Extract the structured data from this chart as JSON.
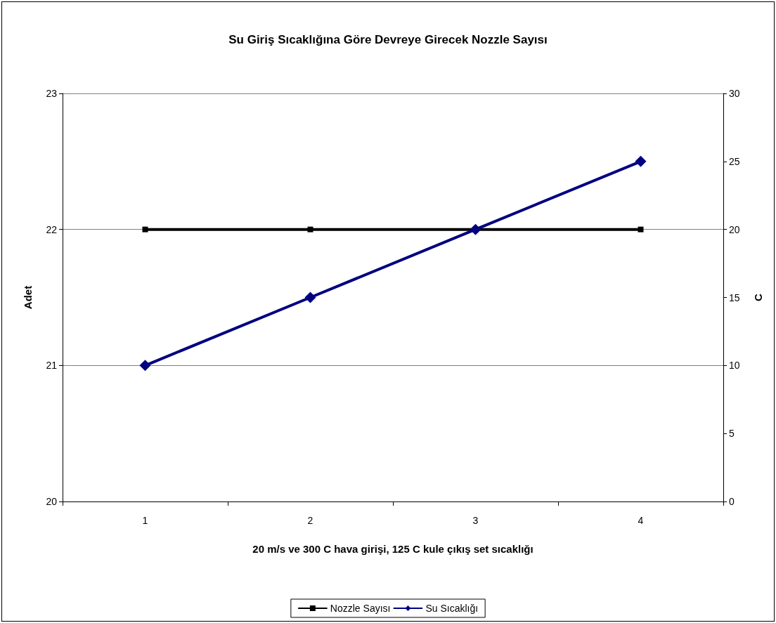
{
  "chart_data": {
    "type": "line",
    "title": "Su Giriş Sıcaklığına Göre Devreye Girecek Nozzle Sayısı",
    "xlabel": "20 m/s ve 300 C hava girişi, 125 C kule çıkış set sıcaklığı",
    "ylabel": "Adet",
    "y2label": "C",
    "categories": [
      "1",
      "2",
      "3",
      "4"
    ],
    "series": [
      {
        "name": "Nozzle Sayısı",
        "color": "#000000",
        "values": [
          22,
          22,
          22,
          22
        ],
        "marker": "square"
      },
      {
        "name": "Su Sıcaklığı",
        "color": "#000080",
        "values": [
          10,
          15,
          20,
          25
        ],
        "marker": "diamond",
        "axis": "y2"
      }
    ],
    "ylim": [
      20,
      23
    ],
    "yticks": [
      20,
      21,
      22,
      23
    ],
    "y2lim": [
      0,
      30
    ],
    "y2ticks": [
      0,
      5,
      10,
      15,
      20,
      25,
      30
    ],
    "grid": "y",
    "legend": "bottom",
    "line_style": "solid"
  }
}
